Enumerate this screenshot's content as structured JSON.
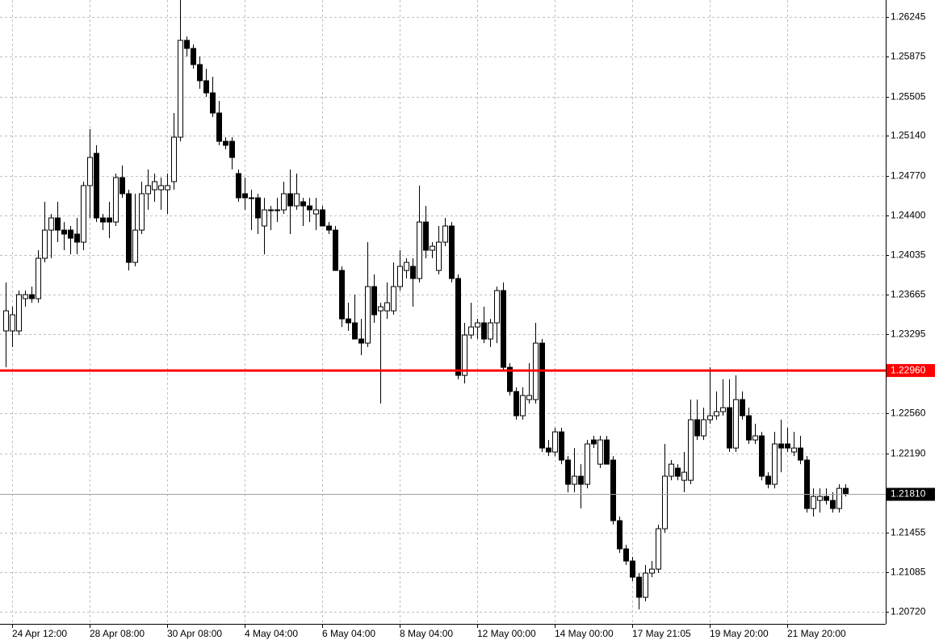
{
  "chart_data": {
    "type": "candlestick",
    "categories": [
      null,
      "24 Apr 12:00",
      null,
      null,
      null,
      null,
      null,
      null,
      null,
      null,
      null,
      null,
      null,
      "28 Apr 08:00",
      null,
      null,
      null,
      null,
      null,
      null,
      null,
      null,
      null,
      null,
      null,
      "30 Apr 08:00",
      null,
      null,
      null,
      null,
      null,
      null,
      null,
      null,
      null,
      null,
      null,
      "4 May 04:00",
      null,
      null,
      null,
      null,
      null,
      null,
      null,
      null,
      null,
      null,
      null,
      "6 May 04:00",
      null,
      null,
      null,
      null,
      null,
      null,
      null,
      null,
      null,
      null,
      null,
      "8 May 04:00",
      null,
      null,
      null,
      null,
      null,
      null,
      null,
      null,
      null,
      null,
      null,
      "12 May 00:00",
      null,
      null,
      null,
      null,
      null,
      null,
      null,
      null,
      null,
      null,
      null,
      "14 May 00:00",
      null,
      null,
      null,
      null,
      null,
      null,
      null,
      null,
      null,
      null,
      null,
      "17 May 21:05",
      null,
      null,
      null,
      null,
      null,
      null,
      null,
      null,
      null,
      null,
      null,
      "19 May 20:00",
      null,
      null,
      null,
      null,
      null,
      null,
      null,
      null,
      null,
      null,
      null,
      "21 May 20:00",
      null,
      null,
      null,
      null,
      null,
      null,
      null,
      null,
      null
    ],
    "open": [
      1.23328,
      1.23328,
      1.23328,
      1.23628,
      1.23665,
      1.23628,
      1.24003,
      1.24265,
      1.24378,
      1.24265,
      1.24265,
      1.24228,
      1.24153,
      1.24678,
      1.24978,
      1.24378,
      1.24378,
      1.2434,
      1.24753,
      1.24603,
      1.23965,
      1.24265,
      1.24603,
      1.2464,
      1.2464,
      1.2464,
      1.24715,
      1.25128,
      1.26028,
      1.25953,
      1.25803,
      1.25653,
      1.2554,
      1.25353,
      1.2509,
      1.2509,
      1.2479,
      1.24603,
      1.24565,
      1.24565,
      1.24303,
      1.24453,
      1.24453,
      1.24453,
      1.24603,
      1.2449,
      1.24528,
      1.2449,
      1.24415,
      1.24453,
      1.24303,
      1.24265,
      1.2389,
      1.2344,
      1.23403,
      1.23253,
      1.23215,
      1.2374,
      1.23515,
      1.23515,
      1.23515,
      1.2374,
      1.2389,
      1.23928,
      1.23815,
      1.2434,
      1.24078,
      1.2389,
      1.24153,
      1.24303,
      1.23815,
      1.22915,
      1.2329,
      1.23365,
      1.23403,
      1.23253,
      1.23403,
      1.23703,
      1.2299,
      1.22765,
      1.2254,
      1.2269,
      1.2269,
      1.23215,
      1.2224,
      1.22203,
      1.2239,
      1.22128,
      1.21903,
      1.21978,
      1.21903,
      1.22315,
      1.2209,
      1.22315,
      1.22128,
      1.21565,
      1.21303,
      1.2119,
      1.2104,
      1.20853,
      1.21078,
      1.21115,
      1.2149,
      1.21978,
      1.22053,
      1.2194,
      1.2194,
      1.22503,
      1.22353,
      1.22503,
      1.2254,
      1.22578,
      1.22615,
      1.2224,
      1.2269,
      1.2254,
      1.22315,
      1.22353,
      1.21978,
      1.21903,
      1.22278,
      1.22278,
      1.22203,
      1.2224,
      1.22128,
      1.21678,
      1.21753,
      1.2179,
      1.21753,
      1.21678,
      1.21865
    ],
    "high": [
      1.23778,
      1.23553,
      1.23703,
      1.23703,
      1.2374,
      1.24078,
      1.24528,
      1.24415,
      1.24528,
      1.2434,
      1.24303,
      1.24378,
      1.24715,
      1.25203,
      1.25053,
      1.24415,
      1.24528,
      1.2479,
      1.24865,
      1.2464,
      1.24603,
      1.24715,
      1.24828,
      1.2479,
      1.24753,
      1.2479,
      1.25353,
      1.26403,
      1.26065,
      1.2599,
      1.25878,
      1.25765,
      1.2569,
      1.25465,
      1.25128,
      1.25128,
      1.24828,
      1.24753,
      1.2464,
      1.24603,
      1.24565,
      1.2449,
      1.24565,
      1.24715,
      1.24828,
      1.2479,
      1.24565,
      1.24565,
      1.24565,
      1.2449,
      1.2434,
      1.24303,
      1.23928,
      1.2359,
      1.23665,
      1.2344,
      1.24153,
      1.23853,
      1.2359,
      1.23778,
      1.23965,
      1.24078,
      1.24003,
      1.24003,
      1.24678,
      1.2449,
      1.24153,
      1.24303,
      1.24378,
      1.2434,
      1.23853,
      1.23403,
      1.2359,
      1.2344,
      1.23553,
      1.2344,
      1.2374,
      1.23778,
      1.23028,
      1.22803,
      1.22803,
      1.23028,
      1.23403,
      1.23253,
      1.22315,
      1.22428,
      1.22428,
      1.22165,
      1.2224,
      1.2209,
      1.22315,
      1.22353,
      1.22353,
      1.22353,
      1.22165,
      1.21603,
      1.2134,
      1.21228,
      1.21078,
      1.21153,
      1.2119,
      1.21528,
      1.22278,
      1.22128,
      1.2209,
      1.22203,
      1.2269,
      1.2269,
      1.22615,
      1.2299,
      1.22765,
      1.22878,
      1.22878,
      1.22915,
      1.22765,
      1.22615,
      1.22465,
      1.2239,
      1.22015,
      1.2239,
      1.22503,
      1.22428,
      1.2239,
      1.22353,
      1.22165,
      1.21865,
      1.21865,
      1.21865,
      1.21828,
      1.21903,
      1.21903
    ],
    "low": [
      1.2299,
      1.23178,
      1.2329,
      1.23553,
      1.2359,
      1.2359,
      1.23965,
      1.24003,
      1.24153,
      1.24078,
      1.2404,
      1.2404,
      1.24078,
      1.24378,
      1.2434,
      1.24265,
      1.2419,
      1.24303,
      1.24565,
      1.2389,
      1.23928,
      1.24228,
      1.24453,
      1.24528,
      1.24453,
      1.24415,
      1.2464,
      1.2509,
      1.25878,
      1.25765,
      1.25578,
      1.25503,
      1.25315,
      1.25053,
      1.25015,
      1.24828,
      1.24528,
      1.24453,
      1.24265,
      1.24228,
      1.2404,
      1.24265,
      1.2434,
      1.24415,
      1.24228,
      1.24453,
      1.24303,
      1.2434,
      1.24265,
      1.24303,
      1.24228,
      1.2389,
      1.23365,
      1.23328,
      1.23253,
      1.23103,
      1.23178,
      1.23403,
      1.22653,
      1.2344,
      1.23478,
      1.23703,
      1.23815,
      1.23553,
      1.23778,
      1.24003,
      1.24003,
      1.23853,
      1.24115,
      1.23778,
      1.22878,
      1.2284,
      1.23253,
      1.23253,
      1.23215,
      1.23178,
      1.23215,
      1.22953,
      1.22728,
      1.22503,
      1.22503,
      1.22653,
      1.22653,
      1.22203,
      1.22165,
      1.22165,
      1.2209,
      1.21828,
      1.21828,
      1.21678,
      1.21865,
      1.2224,
      1.22053,
      1.2209,
      1.21528,
      1.21265,
      1.21153,
      1.21003,
      1.2074,
      1.20815,
      1.2104,
      1.21078,
      1.21453,
      1.2194,
      1.2194,
      1.21828,
      1.21903,
      1.22315,
      1.22315,
      1.22465,
      1.22503,
      1.2254,
      1.22203,
      1.22203,
      1.22503,
      1.22278,
      1.22278,
      1.2194,
      1.21865,
      1.21865,
      1.22015,
      1.22203,
      1.22165,
      1.2209,
      1.2164,
      1.21603,
      1.2164,
      1.21715,
      1.2164,
      1.2164,
      1.2179
    ],
    "close": [
      1.23515,
      1.23478,
      1.23665,
      1.23665,
      1.23628,
      1.24003,
      1.24265,
      1.24378,
      1.24265,
      1.24228,
      1.2419,
      1.24153,
      1.24678,
      1.2494,
      1.24378,
      1.2434,
      1.2434,
      1.24753,
      1.24603,
      1.23965,
      1.24265,
      1.24603,
      1.24678,
      1.24715,
      1.24678,
      1.24678,
      1.25128,
      1.26028,
      1.25953,
      1.25803,
      1.25653,
      1.2554,
      1.25353,
      1.2509,
      1.25053,
      1.2494,
      1.24565,
      1.24565,
      1.24565,
      1.24378,
      1.24453,
      1.24453,
      1.24453,
      1.24603,
      1.2449,
      1.24603,
      1.2449,
      1.24453,
      1.24453,
      1.24303,
      1.24265,
      1.2389,
      1.2344,
      1.23403,
      1.23253,
      1.23215,
      1.2374,
      1.23478,
      1.23553,
      1.2359,
      1.2374,
      1.23928,
      1.23965,
      1.23815,
      1.2434,
      1.24078,
      1.24115,
      1.24153,
      1.24303,
      1.23815,
      1.22915,
      1.2329,
      1.23365,
      1.23403,
      1.23253,
      1.23403,
      1.23703,
      1.2299,
      1.22765,
      1.2254,
      1.22728,
      1.22728,
      1.23215,
      1.2224,
      1.22203,
      1.2239,
      1.22128,
      1.21903,
      1.21978,
      1.21903,
      1.22278,
      1.22278,
      1.22315,
      1.2209,
      1.21565,
      1.21303,
      1.2119,
      1.2104,
      1.20853,
      1.21078,
      1.21115,
      1.2149,
      1.21978,
      1.2209,
      1.21978,
      1.22015,
      1.22503,
      1.22353,
      1.22503,
      1.2254,
      1.22578,
      1.22615,
      1.2224,
      1.2269,
      1.2254,
      1.22315,
      1.22353,
      1.21978,
      1.21903,
      1.22278,
      1.2224,
      1.2224,
      1.2224,
      1.22128,
      1.21678,
      1.2179,
      1.2179,
      1.21753,
      1.21678,
      1.21865,
      1.2181
    ],
    "up_color": "#ffffff",
    "down_color": "#000000",
    "ylim": [
      1.20606,
      1.26403
    ],
    "yticks": [
      1.26245,
      1.25875,
      1.25505,
      {
        "value": 1.2514,
        "label": "1.25140"
      },
      {
        "value": 1.2477,
        "label": "1.24770"
      },
      {
        "value": 1.244,
        "label": "1.24400"
      },
      1.24035,
      1.23665,
      1.23295,
      {
        "value": 1.2256,
        "label": "1.22560"
      },
      {
        "value": 1.2219,
        "label": "1.22190"
      },
      1.21455,
      1.21085,
      {
        "value": 1.2072,
        "label": "1.20720"
      }
    ],
    "grid": true,
    "hline": {
      "value": 1.2296,
      "label": "1.22960",
      "color": "#ff0000"
    },
    "last_price": {
      "value": 1.2181,
      "label": "1.21810"
    }
  }
}
